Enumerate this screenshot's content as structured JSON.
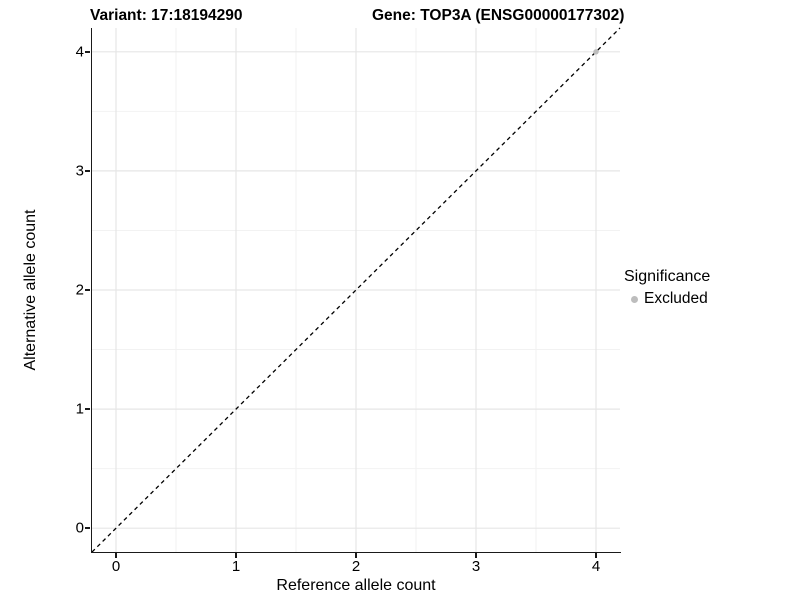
{
  "titles": {
    "variant": "Variant: 17:18194290",
    "gene": "Gene: TOP3A (ENSG00000177302)"
  },
  "chart_data": {
    "type": "scatter",
    "title_left": "Variant: 17:18194290",
    "title_right": "Gene: TOP3A (ENSG00000177302)",
    "xlabel": "Reference allele count",
    "ylabel": "Alternative allele count",
    "xlim": [
      -0.2,
      4.2
    ],
    "ylim": [
      -0.2,
      4.2
    ],
    "x_ticks": [
      0,
      1,
      2,
      3,
      4
    ],
    "y_ticks": [
      0,
      1,
      2,
      3,
      4
    ],
    "x_minor_ticks": [
      0.5,
      1.5,
      2.5,
      3.5
    ],
    "y_minor_ticks": [
      0.5,
      1.5,
      2.5,
      3.5
    ],
    "grid": true,
    "reference_line": {
      "type": "identity",
      "equation": "y = x",
      "style": "dashed",
      "color": "#000000"
    },
    "series": [
      {
        "name": "Excluded",
        "color": "#bdbdbd",
        "points": [
          {
            "x": 4,
            "y": 4
          }
        ]
      }
    ],
    "legend": {
      "title": "Significance",
      "position": "right",
      "items": [
        {
          "label": "Excluded",
          "color": "#bdbdbd"
        }
      ]
    }
  },
  "colors": {
    "background": "#ffffff",
    "axis": "#1a1a1a",
    "grid_major": "#e6e6e6",
    "grid_minor": "#f2f2f2",
    "text": "#000000",
    "excluded_point": "#bdbdbd"
  }
}
